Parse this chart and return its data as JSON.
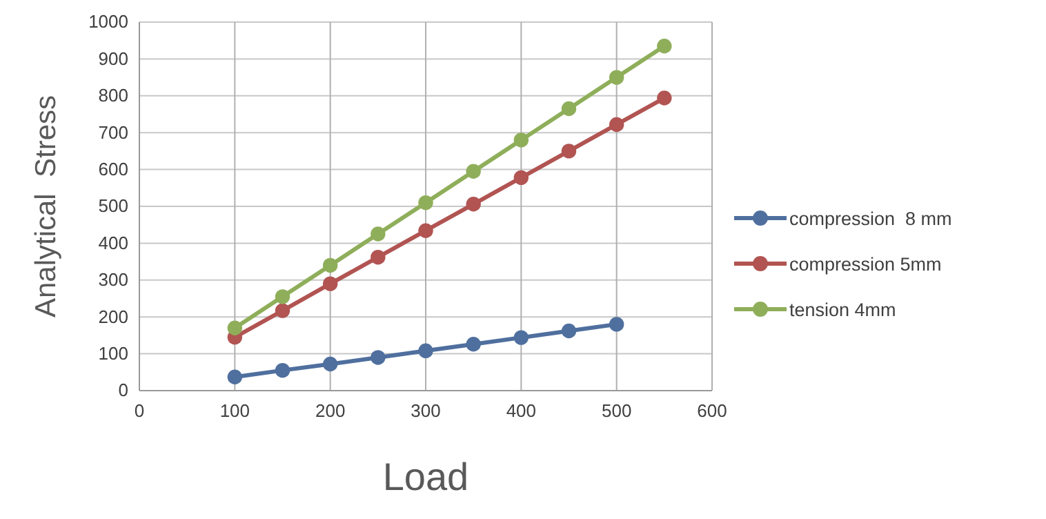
{
  "chart_data": {
    "type": "line",
    "xlabel": "Load",
    "ylabel": "Analytical  Stress",
    "x": [
      100,
      150,
      200,
      250,
      300,
      350,
      400,
      450,
      500,
      550
    ],
    "series": [
      {
        "name": "compression  8 mm",
        "color": "#4f6f9e",
        "values": [
          37,
          55,
          72,
          90,
          108,
          126,
          144,
          162,
          180,
          null
        ]
      },
      {
        "name": "compression 5mm",
        "color": "#b15452",
        "values": [
          145,
          217,
          290,
          362,
          434,
          506,
          578,
          650,
          722,
          794
        ]
      },
      {
        "name": "tension 4mm",
        "color": "#8fae5a",
        "values": [
          170,
          255,
          340,
          425,
          510,
          595,
          680,
          765,
          850,
          935
        ]
      }
    ],
    "xlim": [
      0,
      600
    ],
    "xticks": [
      0,
      100,
      200,
      300,
      400,
      500,
      600
    ],
    "ylim": [
      0,
      1000
    ],
    "yticks": [
      0,
      100,
      200,
      300,
      400,
      500,
      600,
      700,
      800,
      900,
      1000
    ],
    "grid": true,
    "legend": "right",
    "marker": "circle",
    "line_style": "solid"
  }
}
